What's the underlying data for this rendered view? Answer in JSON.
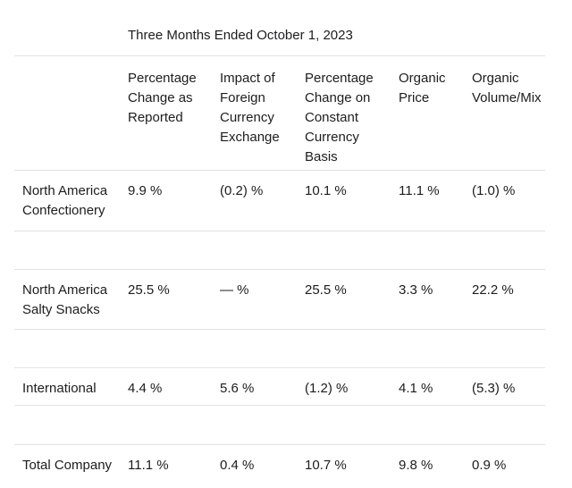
{
  "colors": {
    "background": "#ffffff",
    "text": "#1d1d1f",
    "rule": "#e2e2e2"
  },
  "title": "Three Months Ended October 1, 2023",
  "table": {
    "column_headers": [
      {
        "label": ""
      },
      {
        "label": "Percentage\nChange as\nReported"
      },
      {
        "label": "Impact of\nForeign\nCurrency\nExchange"
      },
      {
        "label": "Percentage\nChange on\nConstant\nCurrency\nBasis"
      },
      {
        "label": "Organic\nPrice"
      },
      {
        "label": "Organic\nVolume/Mix"
      }
    ],
    "rows": [
      {
        "label": "North America\nConfectionery",
        "values": [
          "9.9 %",
          "(0.2) %",
          "10.1 %",
          "11.1 %",
          "(1.0) %"
        ]
      },
      {
        "label": "North America\nSalty Snacks",
        "values": [
          "25.5 %",
          "— %",
          "25.5 %",
          "3.3 %",
          "22.2 %"
        ]
      },
      {
        "label": "International",
        "values": [
          "4.4 %",
          "5.6 %",
          "(1.2) %",
          "4.1 %",
          "(5.3) %"
        ]
      },
      {
        "label": "Total Company",
        "values": [
          "11.1 %",
          "0.4 %",
          "10.7 %",
          "9.8 %",
          "0.9 %"
        ]
      }
    ]
  }
}
